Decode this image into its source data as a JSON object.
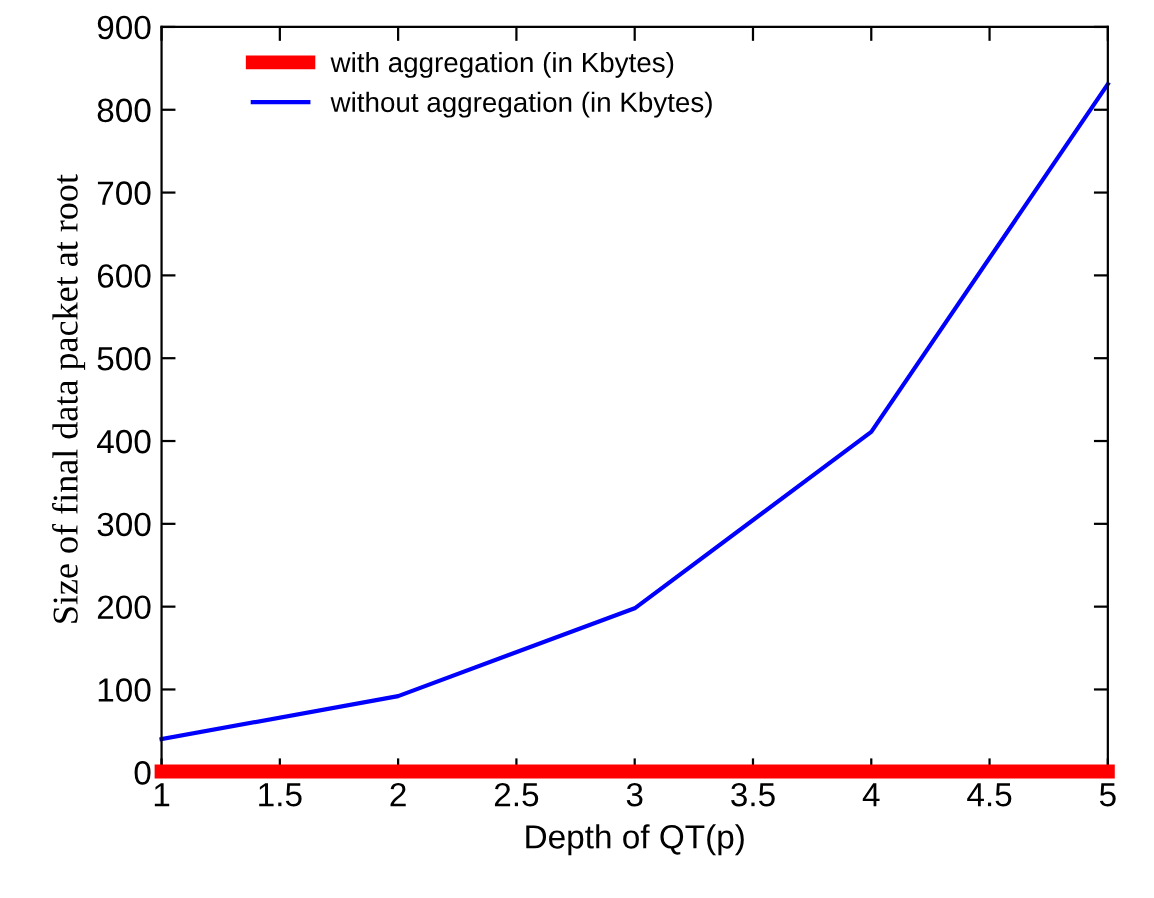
{
  "chart_data": {
    "type": "line",
    "xlabel": "Depth of QT(p)",
    "ylabel": "Size of final data packet at root",
    "x": [
      1,
      2,
      3,
      4,
      5
    ],
    "series": [
      {
        "name": "with aggregation (in Kbytes)",
        "color": "#ff0000",
        "values": [
          1,
          1,
          1,
          1,
          1
        ]
      },
      {
        "name": "without aggregation (in Kbytes)",
        "color": "#0000ff",
        "values": [
          40,
          92,
          198,
          411,
          831
        ]
      }
    ],
    "xlim": [
      1,
      5
    ],
    "xticks": [
      1,
      1.5,
      2,
      2.5,
      3,
      3.5,
      4,
      4.5,
      5
    ],
    "ylim": [
      0,
      900
    ],
    "yticks": [
      0,
      100,
      200,
      300,
      400,
      500,
      600,
      700,
      800,
      900
    ],
    "grid": false,
    "legend": "top left",
    "marker": "none",
    "line_style": "solid"
  }
}
